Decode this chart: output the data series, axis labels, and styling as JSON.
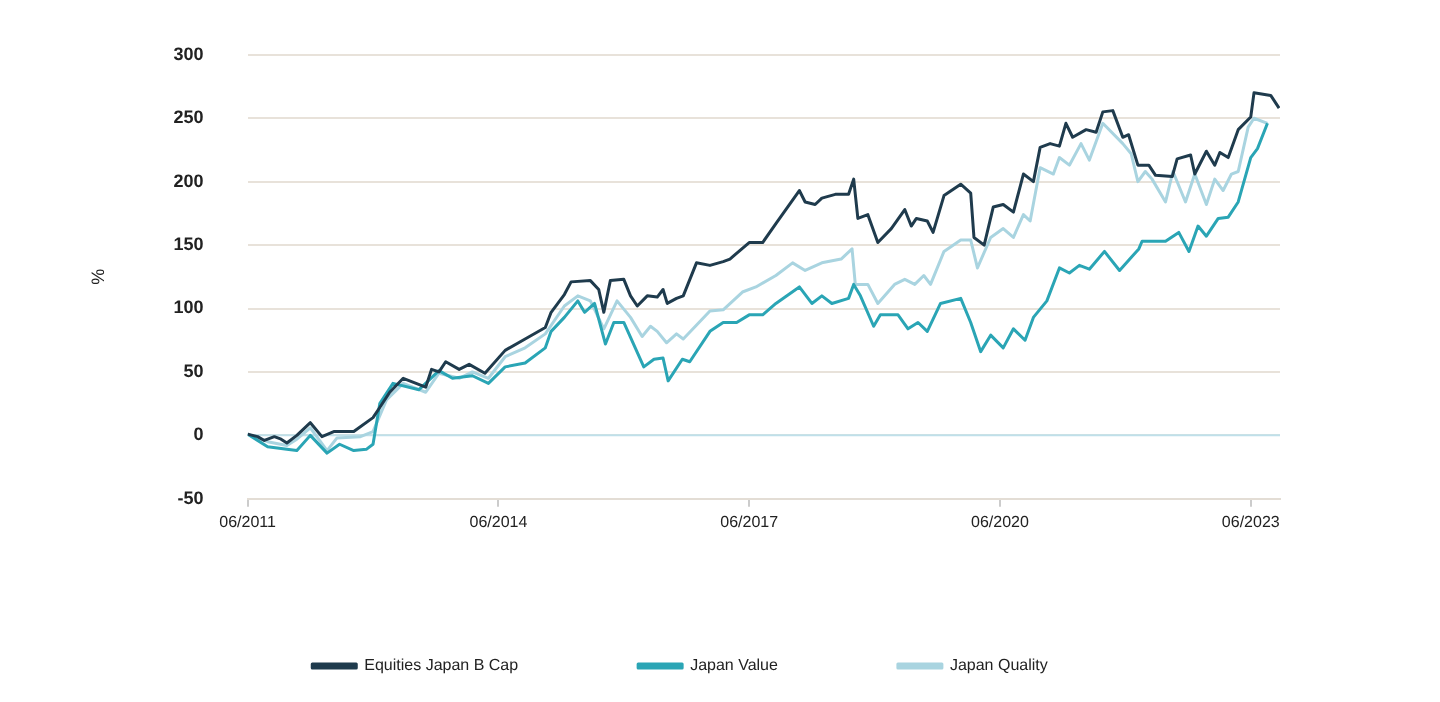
{
  "chart_data": {
    "type": "line",
    "ylabel": "%",
    "xlim": [
      "2011-06-01",
      "2023-10-07"
    ],
    "ylim": [
      -50,
      300
    ],
    "xticks": [
      {
        "value": "2011-06",
        "label": "06/2011"
      },
      {
        "value": "2014-06",
        "label": "06/2014"
      },
      {
        "value": "2017-06",
        "label": "06/2017"
      },
      {
        "value": "2020-06",
        "label": "06/2020"
      },
      {
        "value": "2023-06",
        "label": "06/2023"
      }
    ],
    "yticks": [
      -50,
      0,
      50,
      100,
      150,
      200,
      250,
      300
    ],
    "grid": "y",
    "legend": "bottom",
    "marker": "none",
    "line_style": "solid",
    "ref_lines": [
      {
        "axis": "y",
        "value": 0,
        "color": "#bfe0ea"
      }
    ],
    "series": [
      {
        "name": "Equities Japan B Cap",
        "color": "#1f3b4d",
        "x": [
          "2011-06-01",
          "2011-07-14",
          "2011-08-13",
          "2011-09-26",
          "2011-10-25",
          "2011-11-20",
          "2012-01-03",
          "2012-03-01",
          "2012-04-21",
          "2012-06-12",
          "2012-09-08",
          "2012-12-01",
          "2012-12-30",
          "2013-02-13",
          "2013-04-11",
          "2013-07-18",
          "2013-08-13",
          "2013-09-15",
          "2013-10-14",
          "2013-12-12",
          "2014-01-25",
          "2014-04-03",
          "2014-06-30",
          "2014-09-26",
          "2014-12-23",
          "2015-01-18",
          "2015-03-15",
          "2015-04-14",
          "2015-07-07",
          "2015-08-13",
          "2015-09-05",
          "2015-10-03",
          "2015-12-01",
          "2015-12-30",
          "2016-01-29",
          "2016-03-12",
          "2016-04-25",
          "2016-05-20",
          "2016-06-08",
          "2016-07-18",
          "2016-08-17",
          "2016-10-14",
          "2016-12-12",
          "2017-02-09",
          "2017-03-08",
          "2017-06-01",
          "2017-07-29",
          "2017-09-26",
          "2018-01-07",
          "2018-02-02",
          "2018-03-15",
          "2018-04-14",
          "2018-06-12",
          "2018-08-09",
          "2018-09-01",
          "2018-09-19",
          "2018-11-02",
          "2018-12-15",
          "2019-02-13",
          "2019-04-11",
          "2019-05-09",
          "2019-06-01",
          "2019-07-18",
          "2019-08-13",
          "2019-09-30",
          "2019-12-12",
          "2020-01-25",
          "2020-02-09",
          "2020-03-23",
          "2020-05-02",
          "2020-06-15",
          "2020-07-29",
          "2020-09-12",
          "2020-10-25",
          "2020-11-24",
          "2021-01-07",
          "2021-02-17",
          "2021-03-15",
          "2021-04-14",
          "2021-06-12",
          "2021-07-25",
          "2021-08-24",
          "2021-10-07",
          "2021-11-20",
          "2021-12-15",
          "2022-01-25",
          "2022-03-12",
          "2022-04-11",
          "2022-06-23",
          "2022-07-14",
          "2022-09-12",
          "2022-09-30",
          "2022-11-20",
          "2022-12-26",
          "2023-01-18",
          "2023-02-24",
          "2023-04-07",
          "2023-06-01",
          "2023-06-15",
          "2023-08-27",
          "2023-10-03"
        ],
        "values": [
          1,
          -1,
          -4,
          -1,
          -3,
          -6,
          0,
          10,
          -1,
          3,
          3,
          14,
          22,
          34,
          45,
          38,
          52,
          50,
          58,
          52,
          56,
          49,
          67,
          76,
          85,
          97,
          111,
          121,
          122,
          115,
          97,
          122,
          123,
          110,
          102,
          110,
          109,
          115,
          104,
          108,
          110,
          136,
          134,
          137,
          139,
          152,
          152,
          167,
          193,
          184,
          182,
          187,
          190,
          190,
          202,
          171,
          174,
          152,
          163,
          178,
          165,
          171,
          169,
          160,
          189,
          198,
          191,
          156,
          150,
          180,
          182,
          176,
          206,
          200,
          227,
          230,
          228,
          246,
          235,
          241,
          239,
          255,
          256,
          235,
          237,
          213,
          213,
          205,
          204,
          218,
          221,
          206,
          224,
          213,
          223,
          219,
          241,
          251,
          270,
          268,
          258
        ]
      },
      {
        "name": "Japan Value",
        "color": "#2aa5b5",
        "x": [
          "2011-06-01",
          "2011-08-27",
          "2011-11-20",
          "2012-01-03",
          "2012-03-01",
          "2012-05-13",
          "2012-07-07",
          "2012-09-08",
          "2012-11-02",
          "2012-12-01",
          "2012-12-30",
          "2013-02-27",
          "2013-06-19",
          "2013-09-15",
          "2013-11-13",
          "2014-02-09",
          "2014-04-18",
          "2014-06-30",
          "2014-09-26",
          "2014-12-23",
          "2015-01-18",
          "2015-03-15",
          "2015-05-13",
          "2015-06-12",
          "2015-07-25",
          "2015-09-12",
          "2015-10-18",
          "2015-12-01",
          "2016-02-27",
          "2016-04-11",
          "2016-05-20",
          "2016-06-12",
          "2016-08-13",
          "2016-09-15",
          "2016-12-12",
          "2017-02-09",
          "2017-04-07",
          "2017-06-01",
          "2017-07-29",
          "2017-09-26",
          "2018-01-07",
          "2018-03-01",
          "2018-04-14",
          "2018-05-27",
          "2018-08-09",
          "2018-09-01",
          "2018-09-30",
          "2018-11-27",
          "2018-12-26",
          "2019-03-12",
          "2019-04-25",
          "2019-06-08",
          "2019-07-18",
          "2019-09-15",
          "2019-12-12",
          "2020-01-25",
          "2020-03-08",
          "2020-04-21",
          "2020-06-15",
          "2020-07-29",
          "2020-09-19",
          "2020-10-25",
          "2020-12-23",
          "2021-02-17",
          "2021-03-30",
          "2021-05-13",
          "2021-06-26",
          "2021-09-01",
          "2021-11-06",
          "2022-01-29",
          "2022-02-13",
          "2022-05-24",
          "2022-07-21",
          "2022-09-05",
          "2022-10-14",
          "2022-11-20",
          "2023-01-11",
          "2023-02-24",
          "2023-04-07",
          "2023-06-01",
          "2023-06-30",
          "2023-08-13"
        ],
        "values": [
          1,
          -9,
          -11,
          -12,
          0,
          -14,
          -7,
          -12,
          -11,
          -7,
          25,
          41,
          36,
          51,
          45,
          47,
          41,
          54,
          57,
          69,
          82,
          93,
          106,
          97,
          104,
          72,
          89,
          89,
          54,
          60,
          61,
          43,
          60,
          58,
          82,
          89,
          89,
          95,
          95,
          104,
          117,
          104,
          110,
          104,
          108,
          119,
          110,
          86,
          95,
          95,
          84,
          89,
          82,
          104,
          108,
          89,
          66,
          79,
          69,
          84,
          75,
          93,
          106,
          132,
          128,
          134,
          131,
          145,
          130,
          147,
          153,
          153,
          160,
          145,
          165,
          157,
          171,
          172,
          184,
          219,
          226,
          246
        ]
      },
      {
        "name": "Japan Quality",
        "color": "#a9d4e0",
        "x": [
          "2011-06-01",
          "2011-08-27",
          "2011-11-20",
          "2012-01-03",
          "2012-03-01",
          "2012-05-13",
          "2012-06-26",
          "2012-10-07",
          "2012-12-01",
          "2013-01-29",
          "2013-04-11",
          "2013-07-18",
          "2013-09-15",
          "2013-12-12",
          "2014-02-09",
          "2014-04-18",
          "2014-06-30",
          "2014-09-26",
          "2014-12-23",
          "2015-03-15",
          "2015-05-13",
          "2015-07-07",
          "2015-09-05",
          "2015-11-02",
          "2015-12-30",
          "2016-02-20",
          "2016-03-26",
          "2016-04-25",
          "2016-06-05",
          "2016-07-18",
          "2016-08-17",
          "2016-12-12",
          "2017-02-09",
          "2017-05-02",
          "2017-06-30",
          "2017-09-26",
          "2017-12-08",
          "2018-02-02",
          "2018-04-14",
          "2018-07-07",
          "2018-08-24",
          "2018-09-08",
          "2018-11-02",
          "2018-12-15",
          "2019-02-27",
          "2019-04-11",
          "2019-05-24",
          "2019-07-03",
          "2019-08-02",
          "2019-09-30",
          "2019-12-12",
          "2020-01-25",
          "2020-02-24",
          "2020-04-21",
          "2020-06-15",
          "2020-07-29",
          "2020-09-12",
          "2020-10-11",
          "2020-11-24",
          "2021-01-21",
          "2021-02-17",
          "2021-03-30",
          "2021-05-20",
          "2021-06-26",
          "2021-08-24",
          "2021-11-20",
          "2021-12-26",
          "2022-01-25",
          "2022-02-27",
          "2022-03-26",
          "2022-05-24",
          "2022-06-26",
          "2022-08-20",
          "2022-09-30",
          "2022-11-20",
          "2022-12-26",
          "2023-02-02",
          "2023-03-08",
          "2023-04-07",
          "2023-05-20",
          "2023-06-15",
          "2023-08-13"
        ],
        "values": [
          1,
          -5,
          -8,
          -3,
          6,
          -12,
          -2,
          -1,
          3,
          28,
          41,
          34,
          49,
          45,
          50,
          45,
          62,
          69,
          80,
          102,
          110,
          106,
          84,
          106,
          93,
          78,
          86,
          82,
          73,
          80,
          76,
          98,
          99,
          113,
          117,
          126,
          136,
          130,
          136,
          139,
          147,
          119,
          119,
          104,
          119,
          123,
          119,
          126,
          119,
          145,
          154,
          154,
          132,
          156,
          163,
          156,
          174,
          169,
          211,
          206,
          219,
          213,
          230,
          217,
          246,
          230,
          222,
          200,
          208,
          202,
          184,
          208,
          184,
          206,
          182,
          202,
          193,
          206,
          208,
          243,
          250,
          246
        ]
      }
    ]
  }
}
